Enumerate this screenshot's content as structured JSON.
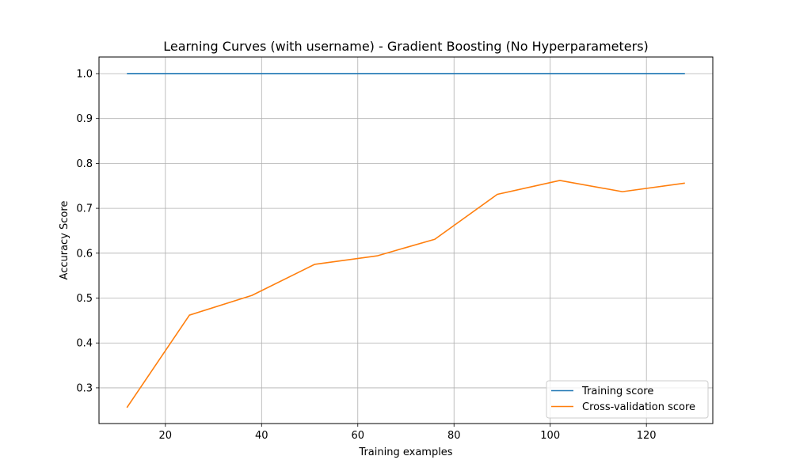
{
  "chart_data": {
    "type": "line",
    "title": "Learning Curves (with username) - Gradient Boosting (No Hyperparameters)",
    "xlabel": "Training examples",
    "ylabel": "Accuracy Score",
    "xlim": [
      6.2,
      133.8
    ],
    "ylim": [
      0.2205,
      1.037
    ],
    "xticks": [
      20,
      40,
      60,
      80,
      100,
      120
    ],
    "yticks": [
      0.3,
      0.4,
      0.5,
      0.6,
      0.7,
      0.8,
      0.9,
      1.0
    ],
    "xtick_labels": [
      "20",
      "40",
      "60",
      "80",
      "100",
      "120"
    ],
    "ytick_labels": [
      "0.3",
      "0.4",
      "0.5",
      "0.6",
      "0.7",
      "0.8",
      "0.9",
      "1.0"
    ],
    "grid": true,
    "legend_position": "lower-right",
    "x": [
      12,
      25,
      38,
      51,
      64,
      76,
      89,
      102,
      115,
      128
    ],
    "series": [
      {
        "name": "Training score",
        "color": "#1f77b4",
        "values": [
          1.0,
          1.0,
          1.0,
          1.0,
          1.0,
          1.0,
          1.0,
          1.0,
          1.0,
          1.0
        ]
      },
      {
        "name": "Cross-validation score",
        "color": "#ff7f0e",
        "values": [
          0.256,
          0.462,
          0.506,
          0.575,
          0.594,
          0.631,
          0.731,
          0.762,
          0.737,
          0.756
        ]
      }
    ]
  }
}
